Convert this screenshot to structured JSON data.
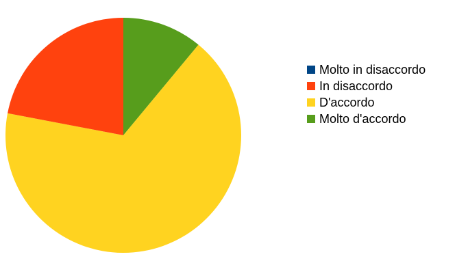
{
  "chart_data": {
    "type": "pie",
    "title": "",
    "legend_position": "right",
    "start_angle_deg": 0,
    "slices": [
      {
        "label": "Molto in disaccordo",
        "value": 0,
        "color": "#004586"
      },
      {
        "label": "In disaccordo",
        "value": 22,
        "color": "#ff420e"
      },
      {
        "label": "D'accordo",
        "value": 67,
        "color": "#ffd320"
      },
      {
        "label": "Molto d'accordo",
        "value": 11,
        "color": "#579d1c"
      }
    ],
    "slice_order_clockwise_from_top": [
      "Molto d'accordo",
      "D'accordo",
      "In disaccordo",
      "Molto in disaccordo"
    ]
  }
}
